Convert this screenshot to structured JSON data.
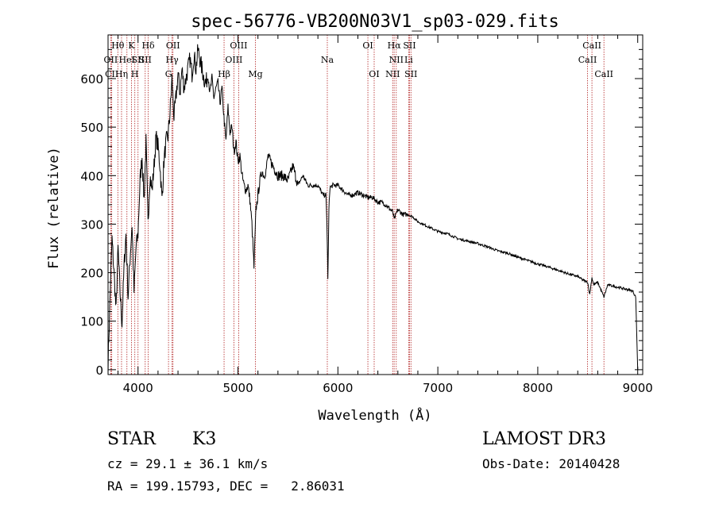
{
  "chart_data": {
    "type": "line",
    "title": "spec-56776-VB200N03V1_sp03-029.fits",
    "xlabel": "Wavelength (Å)",
    "ylabel": "Flux (relative)",
    "xlim": [
      3700,
      9050
    ],
    "ylim": [
      -10,
      690
    ],
    "xticks": [
      4000,
      5000,
      6000,
      7000,
      8000,
      9000
    ],
    "yticks": [
      0,
      100,
      200,
      300,
      400,
      500,
      600
    ],
    "xtick_labels": [
      "4000",
      "5000",
      "6000",
      "7000",
      "8000",
      "9000"
    ],
    "ytick_labels": [
      "0",
      "100",
      "200",
      "300",
      "400",
      "500",
      "600"
    ],
    "grid": false,
    "series": [
      {
        "name": "flux",
        "x": [
          3700,
          3720,
          3740,
          3760,
          3780,
          3800,
          3820,
          3840,
          3860,
          3880,
          3900,
          3920,
          3940,
          3960,
          3980,
          4000,
          4020,
          4040,
          4060,
          4080,
          4100,
          4120,
          4140,
          4160,
          4180,
          4200,
          4220,
          4240,
          4260,
          4280,
          4300,
          4320,
          4340,
          4360,
          4380,
          4400,
          4420,
          4440,
          4460,
          4480,
          4500,
          4520,
          4540,
          4560,
          4580,
          4600,
          4620,
          4640,
          4660,
          4680,
          4700,
          4720,
          4740,
          4760,
          4780,
          4800,
          4820,
          4840,
          4860,
          4880,
          4900,
          4920,
          4940,
          4960,
          4980,
          5000,
          5020,
          5040,
          5060,
          5080,
          5100,
          5120,
          5140,
          5160,
          5180,
          5200,
          5220,
          5240,
          5260,
          5280,
          5300,
          5350,
          5400,
          5450,
          5500,
          5550,
          5600,
          5650,
          5700,
          5750,
          5800,
          5850,
          5880,
          5890,
          5900,
          5910,
          5920,
          5950,
          6000,
          6050,
          6100,
          6150,
          6200,
          6250,
          6300,
          6350,
          6400,
          6450,
          6500,
          6550,
          6563,
          6600,
          6650,
          6700,
          6750,
          6800,
          6850,
          6900,
          6950,
          7000,
          7100,
          7200,
          7300,
          7400,
          7500,
          7600,
          7700,
          7800,
          7900,
          8000,
          8100,
          8200,
          8300,
          8400,
          8450,
          8500,
          8520,
          8542,
          8560,
          8600,
          8662,
          8700,
          8800,
          8900,
          8950,
          8980,
          9000
        ],
        "y": [
          10,
          150,
          270,
          200,
          120,
          250,
          160,
          95,
          210,
          280,
          150,
          230,
          300,
          160,
          250,
          280,
          390,
          440,
          350,
          470,
          300,
          400,
          370,
          420,
          480,
          460,
          420,
          350,
          430,
          470,
          480,
          530,
          600,
          520,
          560,
          610,
          570,
          620,
          580,
          600,
          620,
          640,
          610,
          650,
          620,
          660,
          640,
          620,
          600,
          590,
          610,
          570,
          600,
          560,
          580,
          590,
          550,
          580,
          520,
          470,
          540,
          490,
          500,
          450,
          470,
          430,
          440,
          400,
          380,
          370,
          380,
          350,
          300,
          210,
          330,
          360,
          390,
          410,
          400,
          410,
          440,
          420,
          400,
          400,
          390,
          420,
          380,
          400,
          380,
          380,
          380,
          360,
          360,
          300,
          190,
          330,
          375,
          380,
          380,
          370,
          360,
          360,
          365,
          360,
          355,
          355,
          345,
          345,
          335,
          325,
          310,
          330,
          320,
          320,
          315,
          305,
          300,
          295,
          290,
          285,
          280,
          270,
          265,
          260,
          253,
          245,
          240,
          232,
          225,
          218,
          212,
          205,
          198,
          192,
          185,
          180,
          155,
          190,
          175,
          180,
          150,
          175,
          170,
          165,
          162,
          150,
          0
        ]
      }
    ],
    "line_markers": [
      {
        "label": "Hθ",
        "wl": 3798,
        "row": 0
      },
      {
        "label": "OII",
        "wl": 3727,
        "row": 1
      },
      {
        "label": "CII",
        "wl": 3737,
        "row": 2
      },
      {
        "label": "Hη",
        "wl": 3835,
        "row": 2
      },
      {
        "label": "HeI",
        "wl": 3889,
        "row": 1
      },
      {
        "label": "K",
        "wl": 3934,
        "row": 0
      },
      {
        "label": "H",
        "wl": 3968,
        "row": 2
      },
      {
        "label": "SII",
        "wl": 4000,
        "row": 1
      },
      {
        "label": "Hδ",
        "wl": 4102,
        "row": 0
      },
      {
        "label": "SII",
        "wl": 4072,
        "row": 1
      },
      {
        "label": "OII",
        "wl": 4350,
        "row": 0
      },
      {
        "label": "Hγ",
        "wl": 4341,
        "row": 1
      },
      {
        "label": "G",
        "wl": 4305,
        "row": 2
      },
      {
        "label": "OIII",
        "wl": 5007,
        "row": 0
      },
      {
        "label": "OIII",
        "wl": 4959,
        "row": 1
      },
      {
        "label": "Hβ",
        "wl": 4861,
        "row": 2
      },
      {
        "label": "Mg",
        "wl": 5175,
        "row": 2
      },
      {
        "label": "Na",
        "wl": 5894,
        "row": 1
      },
      {
        "label": "OI",
        "wl": 6300,
        "row": 0
      },
      {
        "label": "OI",
        "wl": 6363,
        "row": 2
      },
      {
        "label": "Hα",
        "wl": 6563,
        "row": 0
      },
      {
        "label": "SII",
        "wl": 6717,
        "row": 0
      },
      {
        "label": "NII",
        "wl": 6584,
        "row": 1
      },
      {
        "label": "Li",
        "wl": 6708,
        "row": 1
      },
      {
        "label": "NII",
        "wl": 6548,
        "row": 2
      },
      {
        "label": "SII",
        "wl": 6731,
        "row": 2
      },
      {
        "label": "CaII",
        "wl": 8542,
        "row": 0
      },
      {
        "label": "CaII",
        "wl": 8498,
        "row": 1
      },
      {
        "label": "CaII",
        "wl": 8662,
        "row": 2
      }
    ],
    "colors": {
      "spectrum": "#000000",
      "markers": "#b22222",
      "frame": "#000000"
    }
  },
  "info": {
    "class_label": "STAR",
    "subclass": "K3",
    "survey": "LAMOST DR3",
    "redshift": "cz = 29.1 ± 36.1 km/s",
    "obs_date": "Obs-Date: 20140428",
    "coords": "RA = 199.15793, DEC =   2.86031"
  }
}
